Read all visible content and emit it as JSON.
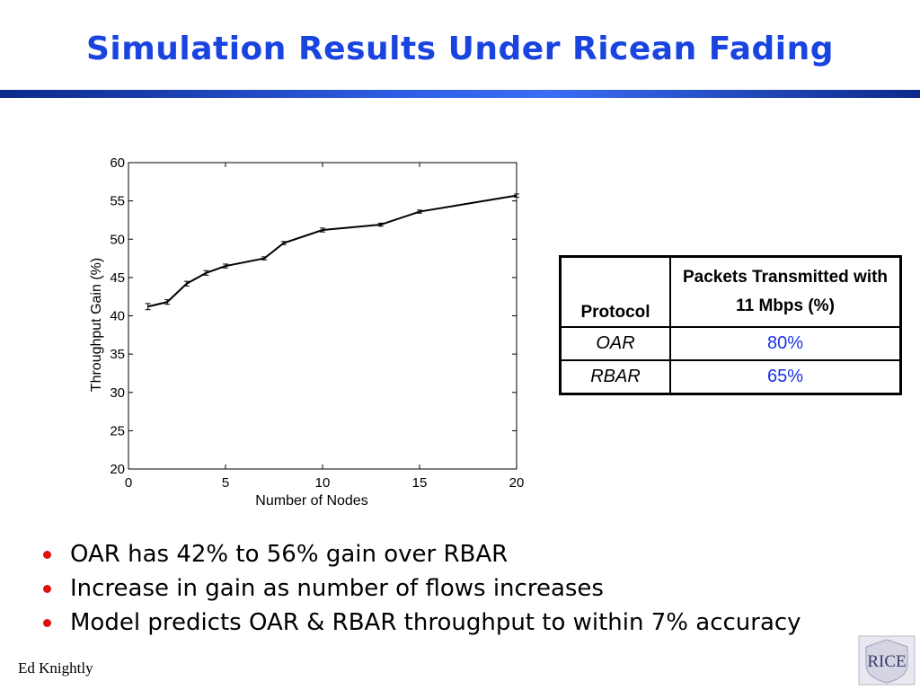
{
  "slide": {
    "title": "Simulation Results Under Ricean Fading",
    "author": "Ed Knightly",
    "logo_text": "RICE"
  },
  "table": {
    "headers": [
      "Protocol",
      "Packets Transmitted with 11 Mbps (%)"
    ],
    "rows": [
      {
        "protocol": "OAR",
        "value": "80%"
      },
      {
        "protocol": "RBAR",
        "value": "65%"
      }
    ],
    "value_color": "#1a33e6"
  },
  "bullets": [
    "OAR has 42% to 56% gain over RBAR",
    "Increase in gain as number of flows increases",
    "Model predicts OAR & RBAR throughput to within 7% accuracy"
  ],
  "colors": {
    "title": "#1a44e0",
    "bullet": "#e01010",
    "line": "#000000"
  },
  "chart_data": {
    "type": "line",
    "xlabel": "Number of Nodes",
    "ylabel": "Throughput Gain (%)",
    "xlim": [
      0,
      20
    ],
    "ylim": [
      20,
      60
    ],
    "xticks": [
      0,
      5,
      10,
      15,
      20
    ],
    "yticks": [
      20,
      25,
      30,
      35,
      40,
      45,
      50,
      55,
      60
    ],
    "grid": false,
    "series": [
      {
        "x": [
          1,
          2,
          3,
          4,
          5,
          7,
          8,
          10,
          13,
          15,
          20
        ],
        "y": [
          41.2,
          41.8,
          44.2,
          45.6,
          46.5,
          47.5,
          49.5,
          51.2,
          51.9,
          53.6,
          55.7
        ],
        "error": [
          0.4,
          0.3,
          0.3,
          0.3,
          0.25,
          0.2,
          0.2,
          0.25,
          0.2,
          0.2,
          0.2
        ]
      }
    ]
  }
}
